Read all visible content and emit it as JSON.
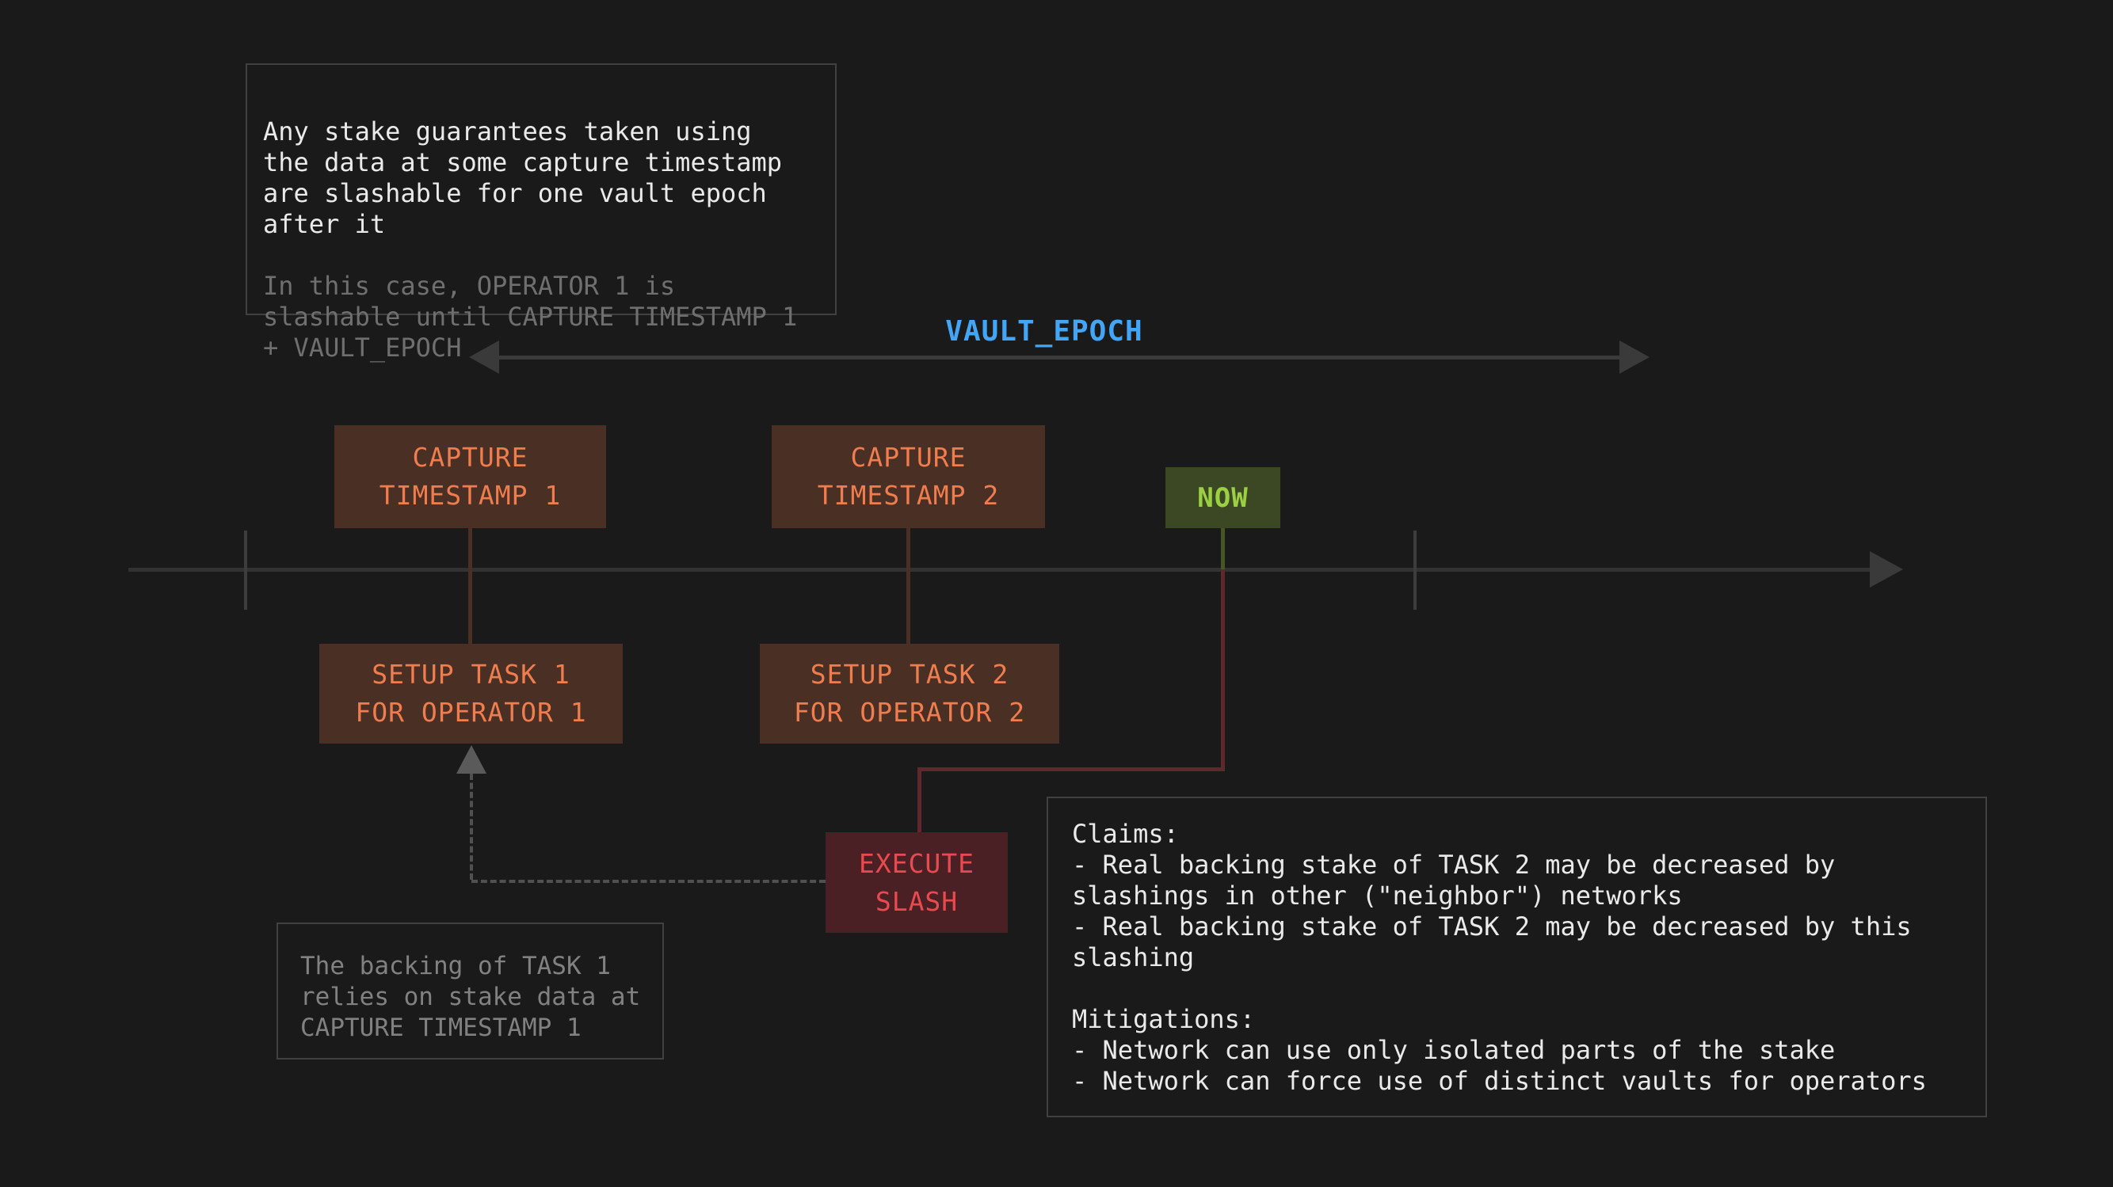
{
  "colors": {
    "background": "#1a1a1b",
    "note_border": "#414141",
    "note_text_primary": "#eaeaea",
    "note_text_secondary": "#6f6f6f",
    "vault_epoch_blue": "#42a5f5",
    "timeline_gray": "#323232",
    "event_box_brown_bg": "#4a2f25",
    "event_box_orange_text": "#ef7d4e",
    "now_bg_green": "#3b4823",
    "now_text_green": "#9bd043",
    "slash_bg_red": "#4b2025",
    "slash_text_red": "#e94a50",
    "slash_line_maroon": "#5e282c",
    "dashed_line_gray": "#505050"
  },
  "note_top": {
    "primary": "Any stake guarantees taken using\nthe data at some capture timestamp\nare slashable for one vault epoch\nafter it",
    "secondary": "In this case, OPERATOR 1 is\nslashable until CAPTURE TIMESTAMP 1\n+ VAULT_EPOCH"
  },
  "vault_epoch_label": "VAULT_EPOCH",
  "boxes": {
    "capture1": {
      "line1": "CAPTURE",
      "line2": "TIMESTAMP 1"
    },
    "capture2": {
      "line1": "CAPTURE",
      "line2": "TIMESTAMP 2"
    },
    "now": {
      "label": "NOW"
    },
    "setup1": {
      "line1": "SETUP TASK 1",
      "line2": "FOR OPERATOR 1"
    },
    "setup2": {
      "line1": "SETUP TASK 2",
      "line2": "FOR OPERATOR 2"
    },
    "execute": {
      "line1": "EXECUTE",
      "line2": "SLASH"
    }
  },
  "note_bottom": {
    "text": "The backing of TASK 1\nrelies on stake data at\nCAPTURE TIMESTAMP 1"
  },
  "claims_note": {
    "text": "Claims:\n- Real backing stake of TASK 2 may be decreased by\nslashings in other (\"neighbor\") networks\n- Real backing stake of TASK 2 may be decreased by this\nslashing\n\nMitigations:\n- Network can use only isolated parts of the stake\n- Network can force use of distinct vaults for operators"
  }
}
